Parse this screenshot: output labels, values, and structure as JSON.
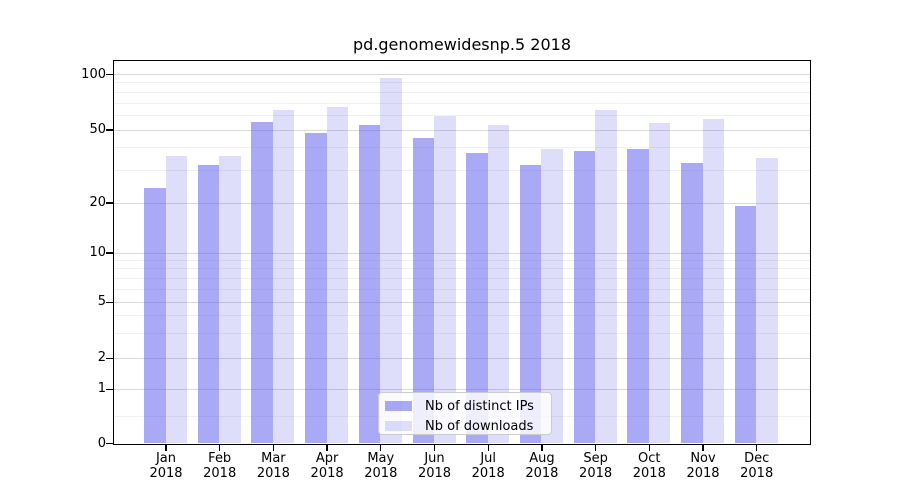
{
  "chart_data": {
    "type": "bar",
    "title": "pd.genomewidesnp.5 2018",
    "categories": [
      "Jan",
      "Feb",
      "Mar",
      "Apr",
      "May",
      "Jun",
      "Jul",
      "Aug",
      "Sep",
      "Oct",
      "Nov",
      "Dec"
    ],
    "category_year": "2018",
    "series": [
      {
        "name": "Nb of distinct IPs",
        "color": "rgba(90,90,235,0.52)",
        "values": [
          24,
          32,
          55,
          48,
          53,
          45,
          37,
          32,
          38,
          39,
          33,
          19
        ]
      },
      {
        "name": "Nb of downloads",
        "color": "rgba(90,90,235,0.2)",
        "values": [
          36,
          36,
          64,
          66,
          95,
          59,
          53,
          39,
          64,
          54,
          57,
          35
        ]
      }
    ],
    "yscale": "symlog",
    "ylim": [
      0,
      105
    ],
    "yticks": [
      0,
      1,
      2,
      5,
      10,
      20,
      50,
      100
    ],
    "minor_gridlines": [
      0.5,
      3,
      4,
      6,
      7,
      8,
      9,
      30,
      40,
      60,
      70,
      80,
      90
    ],
    "grid": true,
    "legend_position": "lower center"
  },
  "colors": {
    "bar_distinct_ips": "rgba(90,90,235,0.52)",
    "bar_downloads": "rgba(90,90,235,0.2)",
    "major_grid": "#d9d9d9",
    "minor_grid": "#f0f0f0",
    "axis": "#000000",
    "legend_border": "#cccccc",
    "background": "#ffffff"
  }
}
